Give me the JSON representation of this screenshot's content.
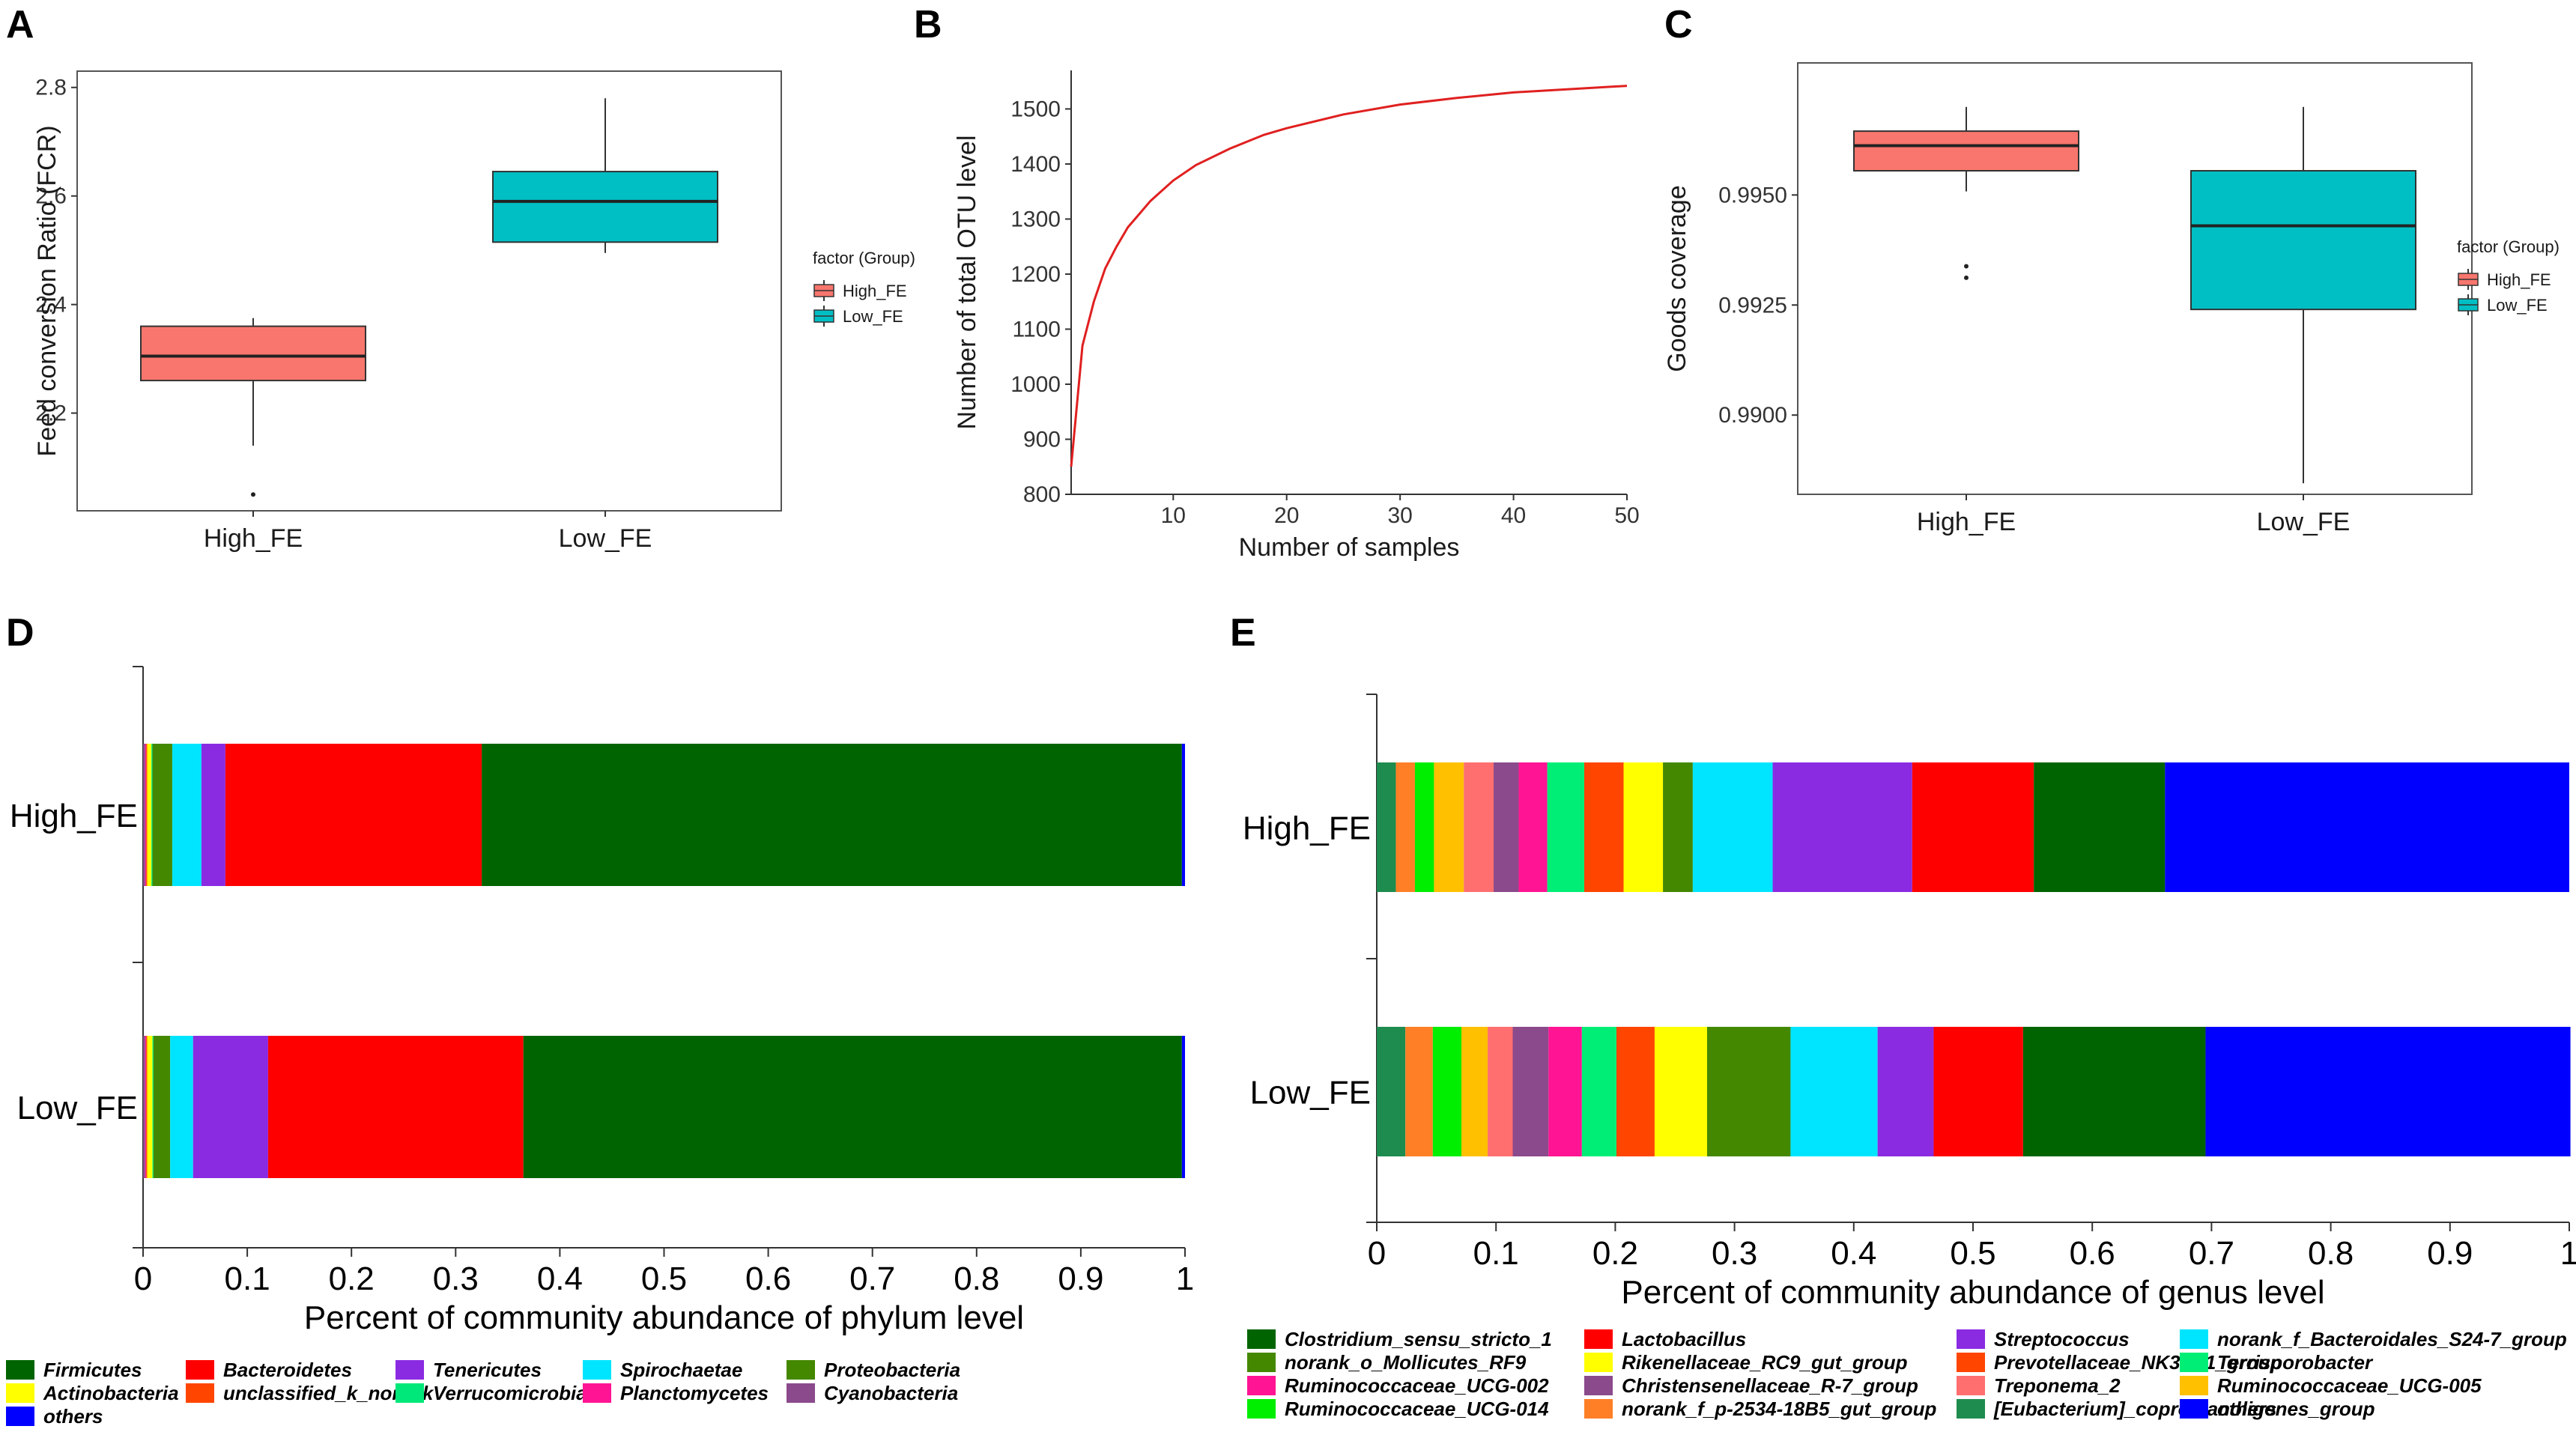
{
  "chart_data": [
    {
      "panel": "A",
      "type": "box",
      "xlabel": "",
      "ylabel": "Feed conversion Ratio (FCR)",
      "ylim": [
        2.02,
        2.83
      ],
      "yticks": [
        2.2,
        2.4,
        2.6,
        2.8
      ],
      "categories": [
        "High_FE",
        "Low_FE"
      ],
      "boxes": [
        {
          "name": "High_FE",
          "min": 2.14,
          "q1": 2.26,
          "median": 2.305,
          "q3": 2.36,
          "max": 2.375,
          "outliers": [
            2.05
          ],
          "color": "#f8766d"
        },
        {
          "name": "Low_FE",
          "min": 2.495,
          "q1": 2.515,
          "median": 2.59,
          "q3": 2.645,
          "max": 2.78,
          "outliers": [],
          "color": "#00bfc4"
        }
      ],
      "legend_title": "factor (Group)",
      "legend": [
        "High_FE",
        "Low_FE"
      ]
    },
    {
      "panel": "B",
      "type": "line",
      "xlabel": "Number of samples",
      "ylabel": "Number of total OTU level",
      "xlim": [
        1,
        50
      ],
      "ylim": [
        800,
        1570
      ],
      "xticks": [
        10,
        20,
        30,
        40,
        50
      ],
      "yticks": [
        800,
        900,
        1000,
        1100,
        1200,
        1300,
        1400,
        1500
      ],
      "x": [
        1,
        2,
        3,
        4,
        5,
        6,
        8,
        10,
        12,
        15,
        18,
        20,
        25,
        30,
        35,
        40,
        45,
        50
      ],
      "y": [
        850,
        1070,
        1150,
        1210,
        1250,
        1285,
        1333,
        1370,
        1398,
        1428,
        1453,
        1465,
        1490,
        1508,
        1520,
        1530,
        1536,
        1542
      ],
      "color": "#e02020"
    },
    {
      "panel": "C",
      "type": "box",
      "xlabel": "",
      "ylabel": "Goods coverage",
      "ylim": [
        0.9882,
        0.998
      ],
      "yticks": [
        0.99,
        0.9925,
        0.995
      ],
      "ytick_labels": [
        "0.9900",
        "0.9925",
        "0.9950"
      ],
      "categories": [
        "High_FE",
        "Low_FE"
      ],
      "boxes": [
        {
          "name": "High_FE",
          "min": 0.99508,
          "q1": 0.99555,
          "median": 0.99612,
          "q3": 0.99645,
          "max": 0.997,
          "outliers": [
            0.99338,
            0.99312
          ],
          "color": "#f8766d"
        },
        {
          "name": "Low_FE",
          "min": 0.98845,
          "q1": 0.9924,
          "median": 0.9943,
          "q3": 0.99555,
          "max": 0.997,
          "outliers": [],
          "color": "#00bfc4"
        }
      ],
      "legend_title": "factor (Group)",
      "legend": [
        "High_FE",
        "Low_FE"
      ]
    },
    {
      "panel": "D",
      "type": "stacked-bar",
      "orientation": "horizontal",
      "xlabel": "Percent of community abundance of phylum level",
      "xlim": [
        0,
        1
      ],
      "xticks": [
        0,
        0.1,
        0.2,
        0.3,
        0.4,
        0.5,
        0.6,
        0.7,
        0.8,
        0.9,
        1
      ],
      "xtick_labels": [
        "0",
        "0.1",
        "0.2",
        "0.3",
        "0.4",
        "0.5",
        "0.6",
        "0.7",
        "0.8",
        "0.9",
        "1"
      ],
      "categories": [
        "High_FE",
        "Low_FE"
      ],
      "series": [
        {
          "name": "Cyanobacteria",
          "color": "#8b4a8b",
          "values": [
            0.002,
            0.002
          ]
        },
        {
          "name": "Planctomycetes",
          "color": "#ff1493",
          "values": [
            0.001,
            0.001
          ]
        },
        {
          "name": "unclassified_k_norank",
          "color": "#ff4500",
          "values": [
            0.001,
            0.001
          ]
        },
        {
          "name": "Actinobacteria",
          "color": "#ffff00",
          "values": [
            0.004,
            0.005
          ]
        },
        {
          "name": "Verrucomicrobia",
          "color": "#00e87a",
          "values": [
            0.001,
            0.001
          ]
        },
        {
          "name": "Proteobacteria",
          "color": "#448800",
          "values": [
            0.019,
            0.016
          ]
        },
        {
          "name": "Spirochaetae",
          "color": "#00e5ff",
          "values": [
            0.028,
            0.022
          ]
        },
        {
          "name": "Tenericutes",
          "color": "#8a2be2",
          "values": [
            0.023,
            0.072
          ]
        },
        {
          "name": "Bacteroidetes",
          "color": "#ff0000",
          "values": [
            0.246,
            0.245
          ]
        },
        {
          "name": "Firmicutes",
          "color": "#006400",
          "values": [
            0.672,
            0.632
          ]
        },
        {
          "name": "others",
          "color": "#0000ff",
          "values": [
            0.003,
            0.003
          ]
        }
      ],
      "legend": [
        "Firmicutes",
        "Bacteroidetes",
        "Tenericutes",
        "Spirochaetae",
        "Proteobacteria",
        "Actinobacteria",
        "unclassified_k_norank",
        "Verrucomicrobia",
        "Planctomycetes",
        "Cyanobacteria",
        "others"
      ]
    },
    {
      "panel": "E",
      "type": "stacked-bar",
      "orientation": "horizontal",
      "xlabel": "Percent of community abundance of genus level",
      "xlim": [
        0,
        1
      ],
      "xticks": [
        0,
        0.1,
        0.2,
        0.3,
        0.4,
        0.5,
        0.6,
        0.7,
        0.8,
        0.9,
        1
      ],
      "xtick_labels": [
        "0",
        "0.1",
        "0.2",
        "0.3",
        "0.4",
        "0.5",
        "0.6",
        "0.7",
        "0.8",
        "0.9",
        "1"
      ],
      "categories": [
        "High_FE",
        "Low_FE"
      ],
      "series": [
        {
          "name": "[Eubacterium]_coprostanoligenes_group",
          "color": "#1e8c4e",
          "values": [
            0.016,
            0.024
          ]
        },
        {
          "name": "norank_f_p-2534-18B5_gut_group",
          "color": "#ff7f27",
          "values": [
            0.016,
            0.023
          ]
        },
        {
          "name": "Ruminococcaceae_UCG-014",
          "color": "#00ee00",
          "values": [
            0.016,
            0.024
          ]
        },
        {
          "name": "Ruminococcaceae_UCG-005",
          "color": "#ffc000",
          "values": [
            0.025,
            0.022
          ]
        },
        {
          "name": "Treponema_2",
          "color": "#ff6f6f",
          "values": [
            0.025,
            0.021
          ]
        },
        {
          "name": "Christensenellaceae_R-7_group",
          "color": "#8b4a8b",
          "values": [
            0.021,
            0.03
          ]
        },
        {
          "name": "Ruminococcaceae_UCG-002",
          "color": "#ff1493",
          "values": [
            0.024,
            0.028
          ]
        },
        {
          "name": "Terrisporobacter",
          "color": "#00ee76",
          "values": [
            0.031,
            0.029
          ]
        },
        {
          "name": "Prevotellaceae_NK3B31_group",
          "color": "#ff4500",
          "values": [
            0.033,
            0.032
          ]
        },
        {
          "name": "Rikenellaceae_RC9_gut_group",
          "color": "#ffff00",
          "values": [
            0.033,
            0.044
          ]
        },
        {
          "name": "norank_o_Mollicutes_RF9",
          "color": "#448800",
          "values": [
            0.025,
            0.07
          ]
        },
        {
          "name": "norank_f_Bacteroidales_S24-7_group",
          "color": "#00e5ff",
          "values": [
            0.067,
            0.073
          ]
        },
        {
          "name": "Streptococcus",
          "color": "#8a2be2",
          "values": [
            0.117,
            0.047
          ]
        },
        {
          "name": "Lactobacillus",
          "color": "#ff0000",
          "values": [
            0.102,
            0.075
          ]
        },
        {
          "name": "Clostridium_sensu_stricto_1",
          "color": "#006400",
          "values": [
            0.11,
            0.153
          ]
        },
        {
          "name": "others",
          "color": "#0000ff",
          "values": [
            0.339,
            0.306
          ]
        }
      ],
      "legend": [
        "Clostridium_sensu_stricto_1",
        "Lactobacillus",
        "Streptococcus",
        "norank_f_Bacteroidales_S24-7_group",
        "norank_o_Mollicutes_RF9",
        "Rikenellaceae_RC9_gut_group",
        "Prevotellaceae_NK3B31_group",
        "Terrisporobacter",
        "Ruminococcaceae_UCG-002",
        "Christensenellaceae_R-7_group",
        "Treponema_2",
        "Ruminococcaceae_UCG-005",
        "Ruminococcaceae_UCG-014",
        "norank_f_p-2534-18B5_gut_group",
        "[Eubacterium]_coprostanoligenes_group",
        "others"
      ]
    }
  ]
}
